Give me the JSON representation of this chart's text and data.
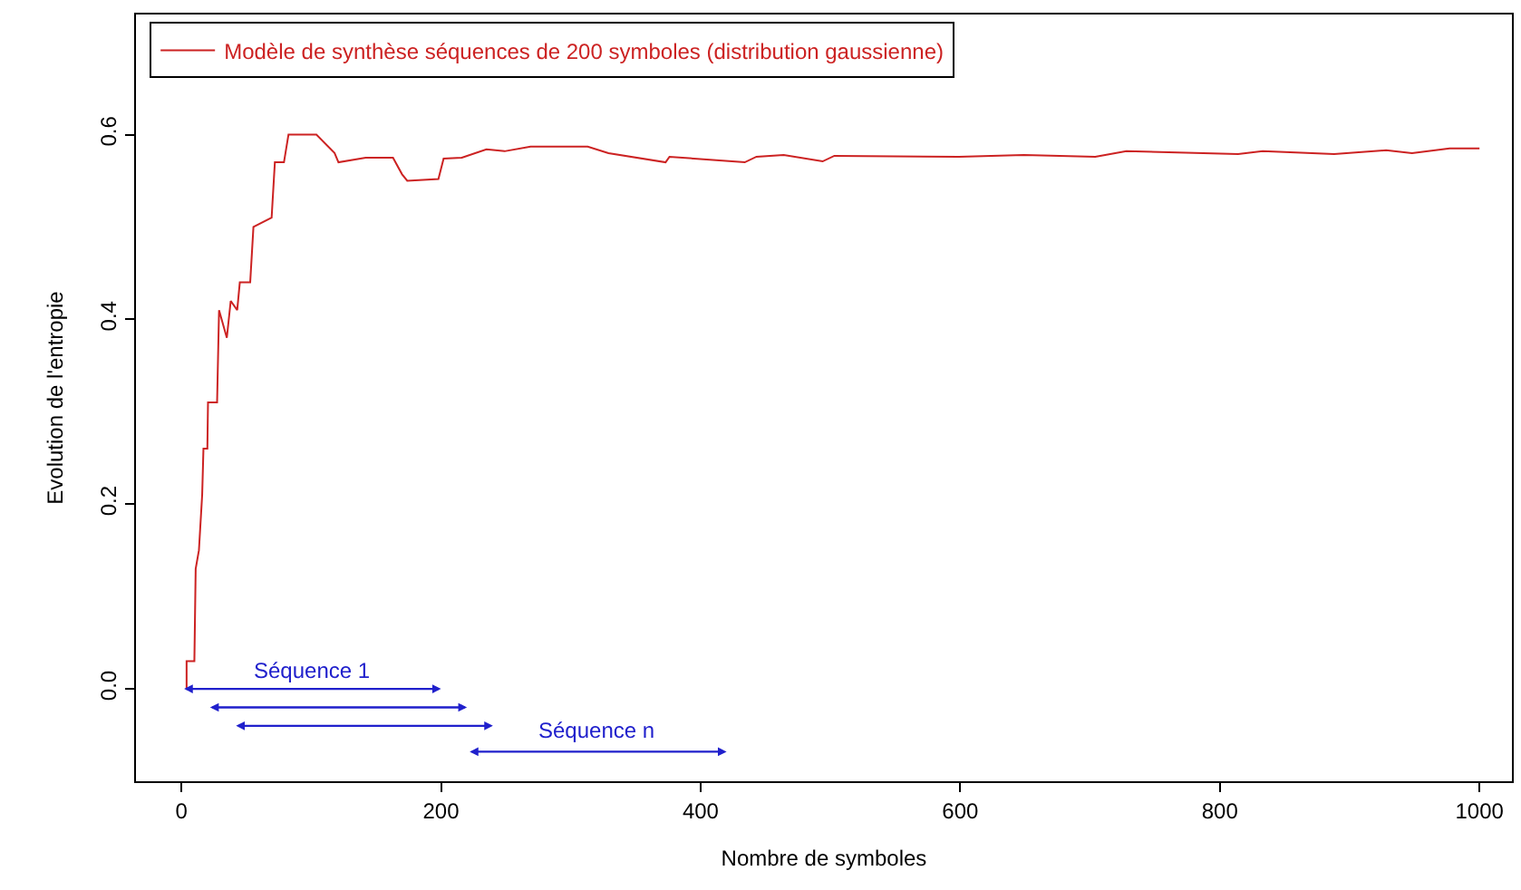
{
  "chart_data": {
    "type": "line",
    "xlabel": "Nombre de symboles",
    "ylabel": "Evolution de l'entropie",
    "series": [
      {
        "name": "Modèle de synthèse séquences de 200 symboles (distribution gaussienne)",
        "color": "#cc2222",
        "x": [
          4,
          4,
          10,
          11,
          13.5,
          16,
          17,
          20,
          20.5,
          27.5,
          29,
          35,
          38,
          43,
          45,
          53,
          55.5,
          69.5,
          72,
          79,
          82.5,
          104,
          118,
          121,
          142,
          163,
          170,
          174,
          198,
          202,
          216,
          235,
          249,
          269,
          313,
          329,
          373,
          376,
          434,
          443,
          464,
          494,
          503,
          599,
          649,
          704,
          728,
          814,
          833,
          888,
          928,
          948,
          977,
          1000
        ],
        "values": [
          0.0,
          0.03,
          0.03,
          0.13,
          0.15,
          0.21,
          0.26,
          0.26,
          0.31,
          0.31,
          0.41,
          0.38,
          0.42,
          0.41,
          0.44,
          0.44,
          0.5,
          0.51,
          0.57,
          0.57,
          0.6,
          0.6,
          0.58,
          0.57,
          0.575,
          0.575,
          0.557,
          0.55,
          0.552,
          0.574,
          0.575,
          0.584,
          0.582,
          0.587,
          0.587,
          0.58,
          0.57,
          0.576,
          0.57,
          0.576,
          0.578,
          0.571,
          0.577,
          0.576,
          0.578,
          0.576,
          0.582,
          0.579,
          0.582,
          0.579,
          0.583,
          0.58,
          0.585,
          0.585
        ]
      }
    ],
    "xlim": [
      -35,
      1025
    ],
    "ylim": [
      -0.1,
      0.73
    ],
    "xticks": [
      0,
      200,
      400,
      600,
      800,
      1000
    ],
    "yticks": [
      {
        "value": 0,
        "label": "0.0"
      },
      {
        "value": 0.2,
        "label": "0.2"
      },
      {
        "value": 0.4,
        "label": "0.4"
      },
      {
        "value": 0.6,
        "label": "0.6"
      }
    ],
    "annotations": [
      "Séquence 1",
      "Séquence n"
    ],
    "legend": "top left",
    "marker": "none",
    "line_style": "solid"
  }
}
